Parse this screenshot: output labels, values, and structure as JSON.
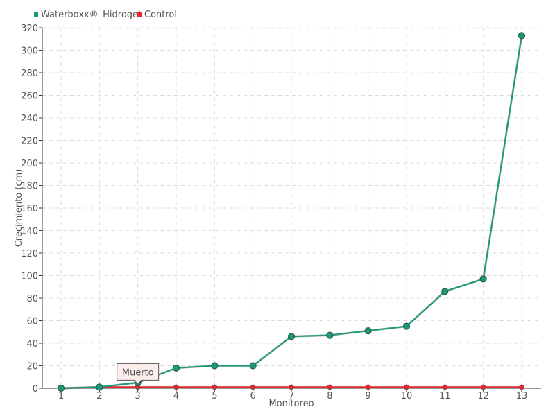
{
  "chart_data": {
    "type": "line",
    "title": "",
    "xlabel": "Monitoreo",
    "ylabel": "Crecimiento (cm)",
    "categories": [
      "1",
      "2",
      "3",
      "4",
      "5",
      "6",
      "7",
      "8",
      "9",
      "10",
      "11",
      "12",
      "13"
    ],
    "ylim": [
      0,
      320
    ],
    "ytick_step": 20,
    "grid": true,
    "legend_position": "top-left",
    "series": [
      {
        "name": "Waterboxx®_Hidrogel",
        "color": "#1a9a78",
        "values": [
          0,
          1,
          5,
          18,
          20,
          20,
          46,
          47,
          51,
          55,
          86,
          97,
          313
        ]
      },
      {
        "name": "Control",
        "color": "#e8262d",
        "values": [
          0,
          1,
          1,
          1,
          1,
          1,
          1,
          1,
          1,
          1,
          1,
          1,
          1
        ]
      }
    ],
    "annotations": [
      {
        "text": "Muerto",
        "category": "3",
        "value": 1
      }
    ]
  }
}
